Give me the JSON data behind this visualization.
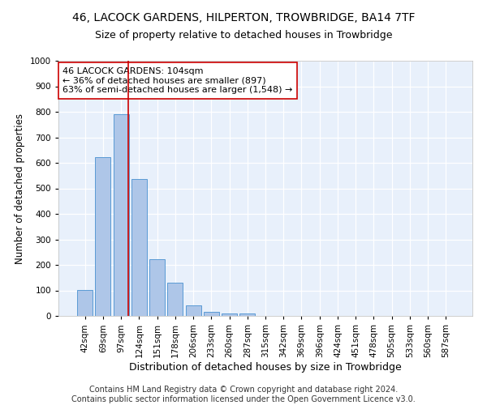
{
  "title": "46, LACOCK GARDENS, HILPERTON, TROWBRIDGE, BA14 7TF",
  "subtitle": "Size of property relative to detached houses in Trowbridge",
  "xlabel": "Distribution of detached houses by size in Trowbridge",
  "ylabel": "Number of detached properties",
  "bar_labels": [
    "42sqm",
    "69sqm",
    "97sqm",
    "124sqm",
    "151sqm",
    "178sqm",
    "206sqm",
    "233sqm",
    "260sqm",
    "287sqm",
    "315sqm",
    "342sqm",
    "369sqm",
    "396sqm",
    "424sqm",
    "451sqm",
    "478sqm",
    "505sqm",
    "533sqm",
    "560sqm",
    "587sqm"
  ],
  "bar_values": [
    103,
    622,
    790,
    537,
    221,
    131,
    41,
    16,
    8,
    11,
    0,
    0,
    0,
    0,
    0,
    0,
    0,
    0,
    0,
    0,
    0
  ],
  "bar_color": "#aec6e8",
  "bar_edge_color": "#5a9bd5",
  "background_color": "#e8f0fb",
  "grid_color": "#ffffff",
  "vline_color": "#cc0000",
  "ylim": [
    0,
    1000
  ],
  "yticks": [
    0,
    100,
    200,
    300,
    400,
    500,
    600,
    700,
    800,
    900,
    1000
  ],
  "annotation_line1": "46 LACOCK GARDENS: 104sqm",
  "annotation_line2": "← 36% of detached houses are smaller (897)",
  "annotation_line3": "63% of semi-detached houses are larger (1,548) →",
  "annotation_box_color": "#ffffff",
  "annotation_box_edge": "#cc0000",
  "footer_text": "Contains HM Land Registry data © Crown copyright and database right 2024.\nContains public sector information licensed under the Open Government Licence v3.0.",
  "title_fontsize": 10,
  "subtitle_fontsize": 9,
  "xlabel_fontsize": 9,
  "ylabel_fontsize": 8.5,
  "tick_fontsize": 7.5,
  "annotation_fontsize": 8,
  "footer_fontsize": 7
}
